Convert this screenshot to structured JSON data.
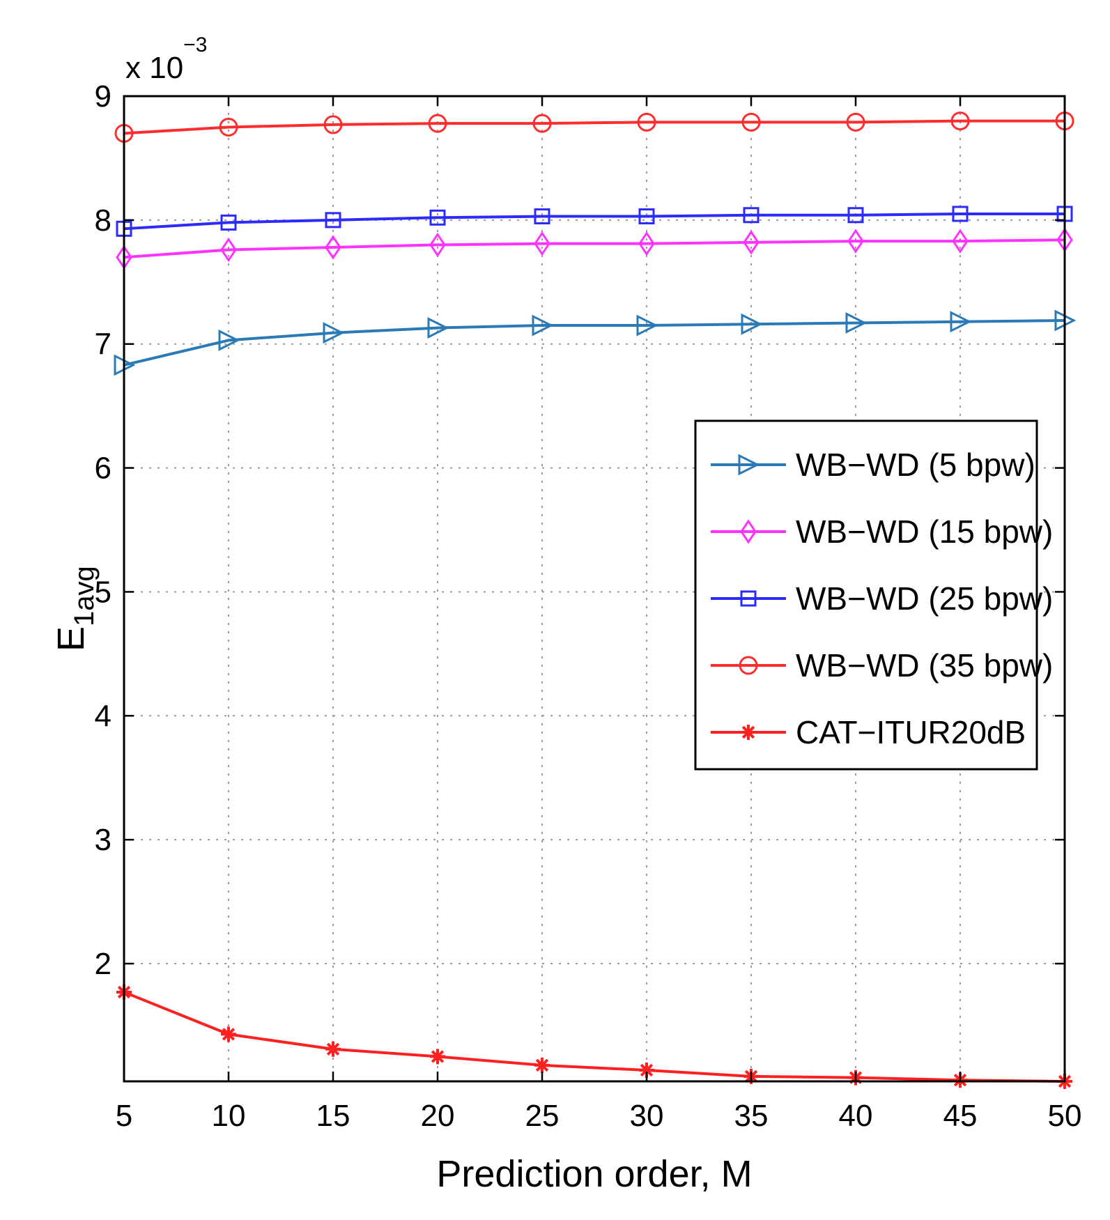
{
  "chart_data": {
    "type": "line",
    "title": "",
    "xlabel": "Prediction order, M",
    "ylabel_main": "E",
    "ylabel_sub": "1avg",
    "multiplier": {
      "prefix": "x 10",
      "exponent": "−3"
    },
    "x": [
      5,
      10,
      15,
      20,
      25,
      30,
      35,
      40,
      45,
      50
    ],
    "x_ticks": [
      "5",
      "10",
      "15",
      "20",
      "25",
      "30",
      "35",
      "40",
      "45",
      "50"
    ],
    "y_ticks": [
      "2",
      "3",
      "4",
      "5",
      "6",
      "7",
      "8",
      "9"
    ],
    "xlim": [
      5,
      50
    ],
    "ylim": [
      1.05,
      9.0
    ],
    "grid": true,
    "legend_position": "center-right",
    "series": [
      {
        "name": "WB−WD (5 bpw)",
        "color": "#2a7ab8",
        "marker": "triangle-right",
        "values": [
          6.83,
          7.03,
          7.09,
          7.13,
          7.15,
          7.15,
          7.16,
          7.17,
          7.18,
          7.19
        ]
      },
      {
        "name": "WB−WD (15 bpw)",
        "color": "#ff33ff",
        "marker": "diamond",
        "values": [
          7.7,
          7.76,
          7.78,
          7.8,
          7.81,
          7.81,
          7.82,
          7.83,
          7.83,
          7.84
        ]
      },
      {
        "name": "WB−WD (25 bpw)",
        "color": "#2b2bff",
        "marker": "square",
        "values": [
          7.93,
          7.98,
          8.0,
          8.02,
          8.03,
          8.03,
          8.04,
          8.04,
          8.05,
          8.05
        ]
      },
      {
        "name": "WB−WD (35 bpw)",
        "color": "#ff2d2d",
        "marker": "circle",
        "values": [
          8.7,
          8.75,
          8.77,
          8.78,
          8.78,
          8.79,
          8.79,
          8.79,
          8.8,
          8.8
        ]
      },
      {
        "name": "CAT−ITUR20dB",
        "color": "#ff2020",
        "marker": "star",
        "values": [
          1.77,
          1.43,
          1.31,
          1.25,
          1.18,
          1.14,
          1.09,
          1.08,
          1.06,
          1.05
        ]
      }
    ]
  }
}
